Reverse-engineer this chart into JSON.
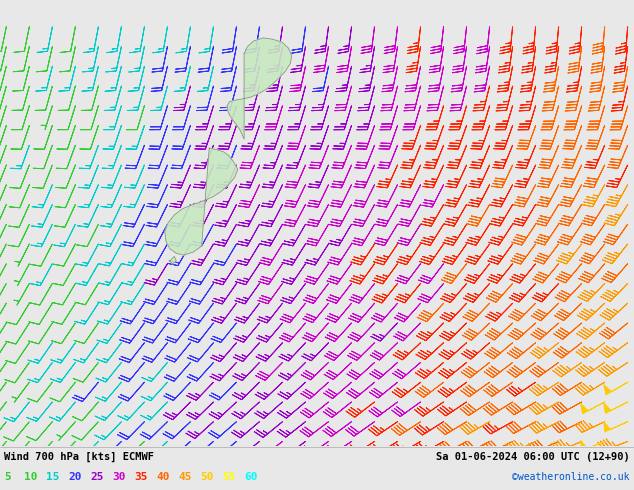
{
  "title_left": "Wind 700 hPa [kts] ECMWF",
  "title_right": "Sa 01-06-2024 06:00 UTC (12+90)",
  "credit": "©weatheronline.co.uk",
  "legend_values": [
    5,
    10,
    15,
    20,
    25,
    30,
    35,
    40,
    45,
    50,
    55,
    60
  ],
  "legend_colors": [
    "#33cc33",
    "#33cc33",
    "#00cccc",
    "#3333ff",
    "#9900cc",
    "#cc00cc",
    "#ff2200",
    "#ff6600",
    "#ff9900",
    "#ffcc00",
    "#ffff00",
    "#00ffff"
  ],
  "bg_color": "#e8e8e8",
  "map_bg_color": "#e8e8e8",
  "nz_color": "#c8e8c0",
  "nz_border_color": "#888888",
  "fig_width": 6.34,
  "fig_height": 4.9,
  "dpi": 100,
  "nx": 28,
  "ny": 22
}
